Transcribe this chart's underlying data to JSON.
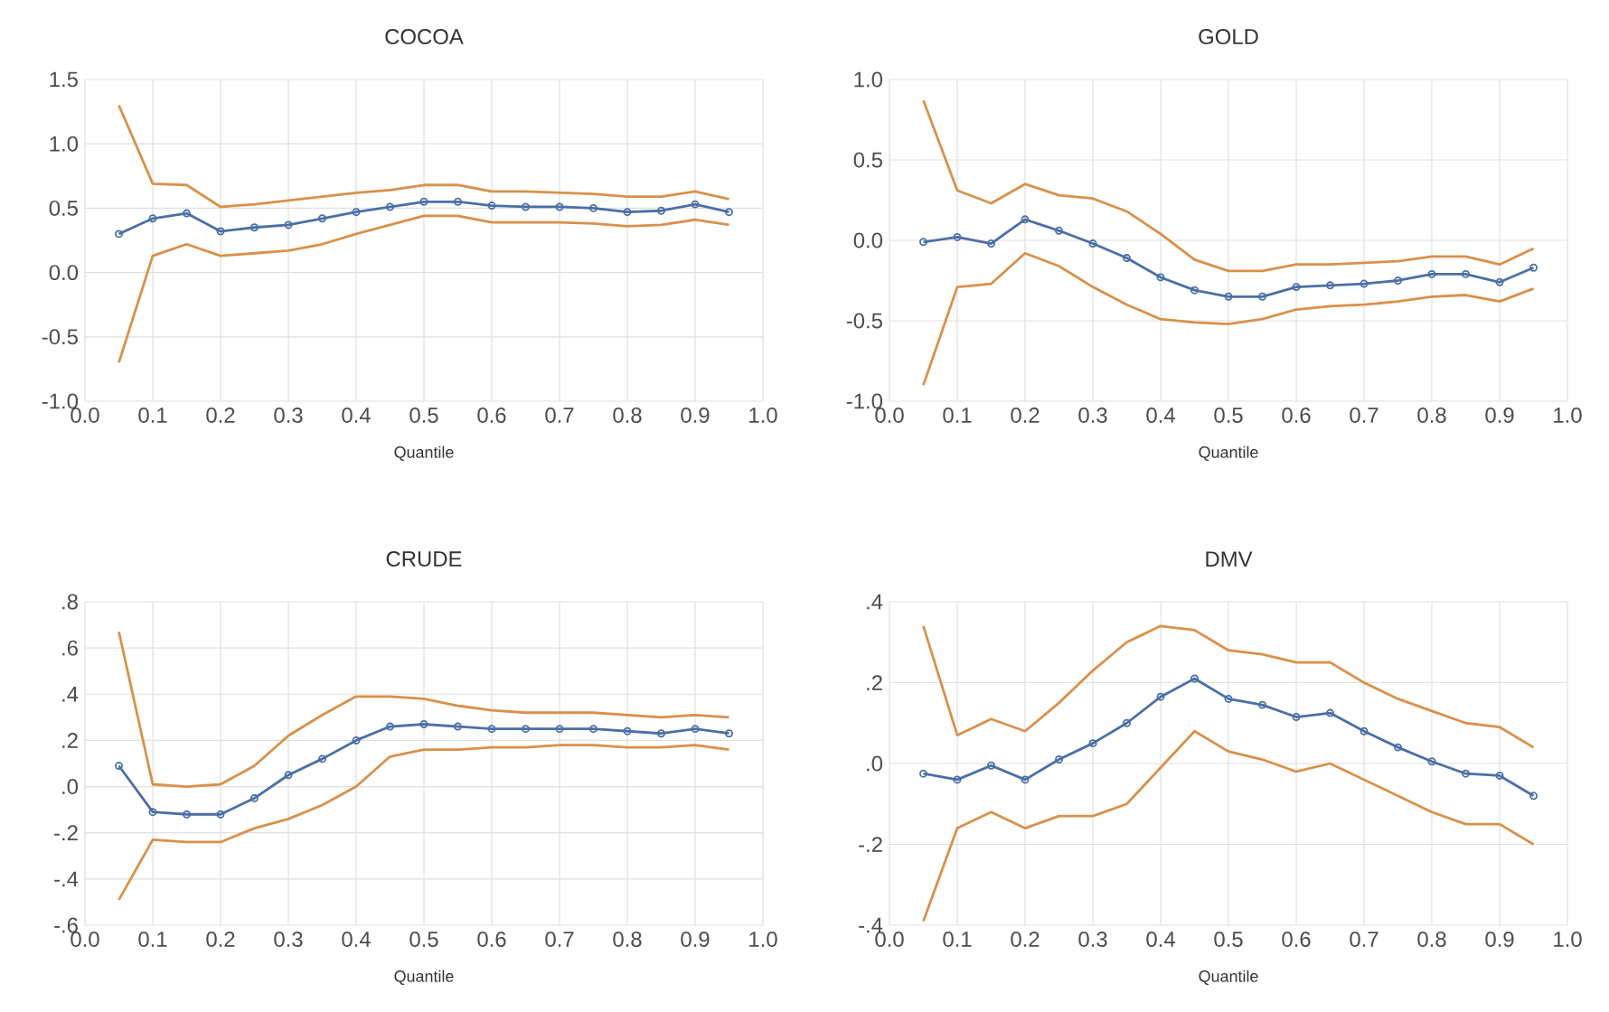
{
  "chart_data": [
    {
      "type": "line",
      "title": "COCOA",
      "xlabel": "Quantile",
      "grid": true,
      "x": [
        0.05,
        0.1,
        0.15,
        0.2,
        0.25,
        0.3,
        0.35,
        0.4,
        0.45,
        0.5,
        0.55,
        0.6,
        0.65,
        0.7,
        0.75,
        0.8,
        0.85,
        0.9,
        0.95
      ],
      "xlim": [
        0,
        1
      ],
      "xticks": [
        {
          "value": 0,
          "label": "0.0"
        },
        {
          "value": 0.1,
          "label": "0.1"
        },
        {
          "value": 0.2,
          "label": "0.2"
        },
        {
          "value": 0.3,
          "label": "0.3"
        },
        {
          "value": 0.4,
          "label": "0.4"
        },
        {
          "value": 0.5,
          "label": "0.5"
        },
        {
          "value": 0.6,
          "label": "0.6"
        },
        {
          "value": 0.7,
          "label": "0.7"
        },
        {
          "value": 0.8,
          "label": "0.8"
        },
        {
          "value": 0.9,
          "label": "0.9"
        },
        {
          "value": 1,
          "label": "1.0"
        }
      ],
      "ylim": [
        -1,
        1.5
      ],
      "yticks": [
        {
          "value": -1,
          "label": "-1.0"
        },
        {
          "value": -0.5,
          "label": "-0.5"
        },
        {
          "value": 0,
          "label": "0.0"
        },
        {
          "value": 0.5,
          "label": "0.5"
        },
        {
          "value": 1,
          "label": "1.0"
        },
        {
          "value": 1.5,
          "label": "1.5"
        }
      ],
      "series": [
        {
          "color": "#4a6fa5",
          "marker": "circle",
          "values": [
            0.3,
            0.42,
            0.46,
            0.32,
            0.35,
            0.37,
            0.42,
            0.47,
            0.51,
            0.55,
            0.55,
            0.52,
            0.51,
            0.51,
            0.5,
            0.47,
            0.48,
            0.53,
            0.47
          ]
        },
        {
          "color": "#d9904a",
          "marker": "none",
          "values": [
            1.3,
            0.69,
            0.68,
            0.51,
            0.53,
            0.56,
            0.59,
            0.62,
            0.64,
            0.68,
            0.68,
            0.63,
            0.63,
            0.62,
            0.61,
            0.59,
            0.59,
            0.63,
            0.57
          ]
        },
        {
          "color": "#d9904a",
          "marker": "none",
          "values": [
            -0.7,
            0.13,
            0.22,
            0.13,
            0.15,
            0.17,
            0.22,
            0.3,
            0.37,
            0.44,
            0.44,
            0.39,
            0.39,
            0.39,
            0.38,
            0.36,
            0.37,
            0.41,
            0.37
          ]
        }
      ]
    },
    {
      "type": "line",
      "title": "GOLD",
      "xlabel": "Quantile",
      "grid": true,
      "x": [
        0.05,
        0.1,
        0.15,
        0.2,
        0.25,
        0.3,
        0.35,
        0.4,
        0.45,
        0.5,
        0.55,
        0.6,
        0.65,
        0.7,
        0.75,
        0.8,
        0.85,
        0.9,
        0.95
      ],
      "xlim": [
        0,
        1
      ],
      "xticks": [
        {
          "value": 0,
          "label": "0.0"
        },
        {
          "value": 0.1,
          "label": "0.1"
        },
        {
          "value": 0.2,
          "label": "0.2"
        },
        {
          "value": 0.3,
          "label": "0.3"
        },
        {
          "value": 0.4,
          "label": "0.4"
        },
        {
          "value": 0.5,
          "label": "0.5"
        },
        {
          "value": 0.6,
          "label": "0.6"
        },
        {
          "value": 0.7,
          "label": "0.7"
        },
        {
          "value": 0.8,
          "label": "0.8"
        },
        {
          "value": 0.9,
          "label": "0.9"
        },
        {
          "value": 1,
          "label": "1.0"
        }
      ],
      "ylim": [
        -1,
        1
      ],
      "yticks": [
        {
          "value": -1,
          "label": "-1.0"
        },
        {
          "value": -0.5,
          "label": "-0.5"
        },
        {
          "value": 0,
          "label": "0.0"
        },
        {
          "value": 0.5,
          "label": "0.5"
        },
        {
          "value": 1,
          "label": "1.0"
        }
      ],
      "series": [
        {
          "color": "#4a6fa5",
          "marker": "circle",
          "values": [
            -0.01,
            0.02,
            -0.02,
            0.13,
            0.06,
            -0.02,
            -0.11,
            -0.23,
            -0.31,
            -0.35,
            -0.35,
            -0.29,
            -0.28,
            -0.27,
            -0.25,
            -0.21,
            -0.21,
            -0.26,
            -0.17
          ]
        },
        {
          "color": "#d9904a",
          "marker": "none",
          "values": [
            0.87,
            0.31,
            0.23,
            0.35,
            0.28,
            0.26,
            0.18,
            0.04,
            -0.12,
            -0.19,
            -0.19,
            -0.15,
            -0.15,
            -0.14,
            -0.13,
            -0.1,
            -0.1,
            -0.15,
            -0.05
          ]
        },
        {
          "color": "#d9904a",
          "marker": "none",
          "values": [
            -0.9,
            -0.29,
            -0.27,
            -0.08,
            -0.16,
            -0.29,
            -0.4,
            -0.49,
            -0.51,
            -0.52,
            -0.49,
            -0.43,
            -0.41,
            -0.4,
            -0.38,
            -0.35,
            -0.34,
            -0.38,
            -0.3
          ]
        }
      ]
    },
    {
      "type": "line",
      "title": "CRUDE",
      "xlabel": "Quantile",
      "grid": true,
      "x": [
        0.05,
        0.1,
        0.15,
        0.2,
        0.25,
        0.3,
        0.35,
        0.4,
        0.45,
        0.5,
        0.55,
        0.6,
        0.65,
        0.7,
        0.75,
        0.8,
        0.85,
        0.9,
        0.95
      ],
      "xlim": [
        0,
        1
      ],
      "xticks": [
        {
          "value": 0,
          "label": "0.0"
        },
        {
          "value": 0.1,
          "label": "0.1"
        },
        {
          "value": 0.2,
          "label": "0.2"
        },
        {
          "value": 0.3,
          "label": "0.3"
        },
        {
          "value": 0.4,
          "label": "0.4"
        },
        {
          "value": 0.5,
          "label": "0.5"
        },
        {
          "value": 0.6,
          "label": "0.6"
        },
        {
          "value": 0.7,
          "label": "0.7"
        },
        {
          "value": 0.8,
          "label": "0.8"
        },
        {
          "value": 0.9,
          "label": "0.9"
        },
        {
          "value": 1,
          "label": "1.0"
        }
      ],
      "ylim": [
        -0.6,
        0.8
      ],
      "yticks": [
        {
          "value": -0.6,
          "label": "-.6"
        },
        {
          "value": -0.4,
          "label": "-.4"
        },
        {
          "value": -0.2,
          "label": "-.2"
        },
        {
          "value": 0,
          "label": ".0"
        },
        {
          "value": 0.2,
          "label": ".2"
        },
        {
          "value": 0.4,
          "label": ".4"
        },
        {
          "value": 0.6,
          "label": ".6"
        },
        {
          "value": 0.8,
          "label": ".8"
        }
      ],
      "series": [
        {
          "color": "#4a6fa5",
          "marker": "circle",
          "values": [
            0.09,
            -0.11,
            -0.12,
            -0.12,
            -0.05,
            0.05,
            0.12,
            0.2,
            0.26,
            0.27,
            0.26,
            0.25,
            0.25,
            0.25,
            0.25,
            0.24,
            0.23,
            0.25,
            0.23
          ]
        },
        {
          "color": "#d9904a",
          "marker": "none",
          "values": [
            0.67,
            0.01,
            0.0,
            0.01,
            0.09,
            0.22,
            0.31,
            0.39,
            0.39,
            0.38,
            0.35,
            0.33,
            0.32,
            0.32,
            0.32,
            0.31,
            0.3,
            0.31,
            0.3
          ]
        },
        {
          "color": "#d9904a",
          "marker": "none",
          "values": [
            -0.49,
            -0.23,
            -0.24,
            -0.24,
            -0.18,
            -0.14,
            -0.08,
            0.0,
            0.13,
            0.16,
            0.16,
            0.17,
            0.17,
            0.18,
            0.18,
            0.17,
            0.17,
            0.18,
            0.16
          ]
        }
      ]
    },
    {
      "type": "line",
      "title": "DMV",
      "xlabel": "Quantile",
      "grid": true,
      "x": [
        0.05,
        0.1,
        0.15,
        0.2,
        0.25,
        0.3,
        0.35,
        0.4,
        0.45,
        0.5,
        0.55,
        0.6,
        0.65,
        0.7,
        0.75,
        0.8,
        0.85,
        0.9,
        0.95
      ],
      "xlim": [
        0,
        1
      ],
      "xticks": [
        {
          "value": 0,
          "label": "0.0"
        },
        {
          "value": 0.1,
          "label": "0.1"
        },
        {
          "value": 0.2,
          "label": "0.2"
        },
        {
          "value": 0.3,
          "label": "0.3"
        },
        {
          "value": 0.4,
          "label": "0.4"
        },
        {
          "value": 0.5,
          "label": "0.5"
        },
        {
          "value": 0.6,
          "label": "0.6"
        },
        {
          "value": 0.7,
          "label": "0.7"
        },
        {
          "value": 0.8,
          "label": "0.8"
        },
        {
          "value": 0.9,
          "label": "0.9"
        },
        {
          "value": 1,
          "label": "1.0"
        }
      ],
      "ylim": [
        -0.4,
        0.4
      ],
      "yticks": [
        {
          "value": -0.4,
          "label": "-.4"
        },
        {
          "value": -0.2,
          "label": "-.2"
        },
        {
          "value": 0,
          "label": ".0"
        },
        {
          "value": 0.2,
          "label": ".2"
        },
        {
          "value": 0.4,
          "label": ".4"
        }
      ],
      "series": [
        {
          "color": "#4a6fa5",
          "marker": "circle",
          "values": [
            -0.025,
            -0.04,
            -0.005,
            -0.04,
            0.01,
            0.05,
            0.1,
            0.165,
            0.21,
            0.16,
            0.145,
            0.115,
            0.125,
            0.08,
            0.04,
            0.005,
            -0.025,
            -0.03,
            -0.08
          ]
        },
        {
          "color": "#d9904a",
          "marker": "none",
          "values": [
            0.34,
            0.07,
            0.11,
            0.08,
            0.15,
            0.23,
            0.3,
            0.34,
            0.33,
            0.28,
            0.27,
            0.25,
            0.25,
            0.2,
            0.16,
            0.13,
            0.1,
            0.09,
            0.04
          ]
        },
        {
          "color": "#d9904a",
          "marker": "none",
          "values": [
            -0.39,
            -0.16,
            -0.12,
            -0.16,
            -0.13,
            -0.13,
            -0.1,
            -0.01,
            0.08,
            0.03,
            0.01,
            -0.02,
            0.0,
            -0.04,
            -0.08,
            -0.12,
            -0.15,
            -0.15,
            -0.2
          ]
        }
      ]
    }
  ]
}
